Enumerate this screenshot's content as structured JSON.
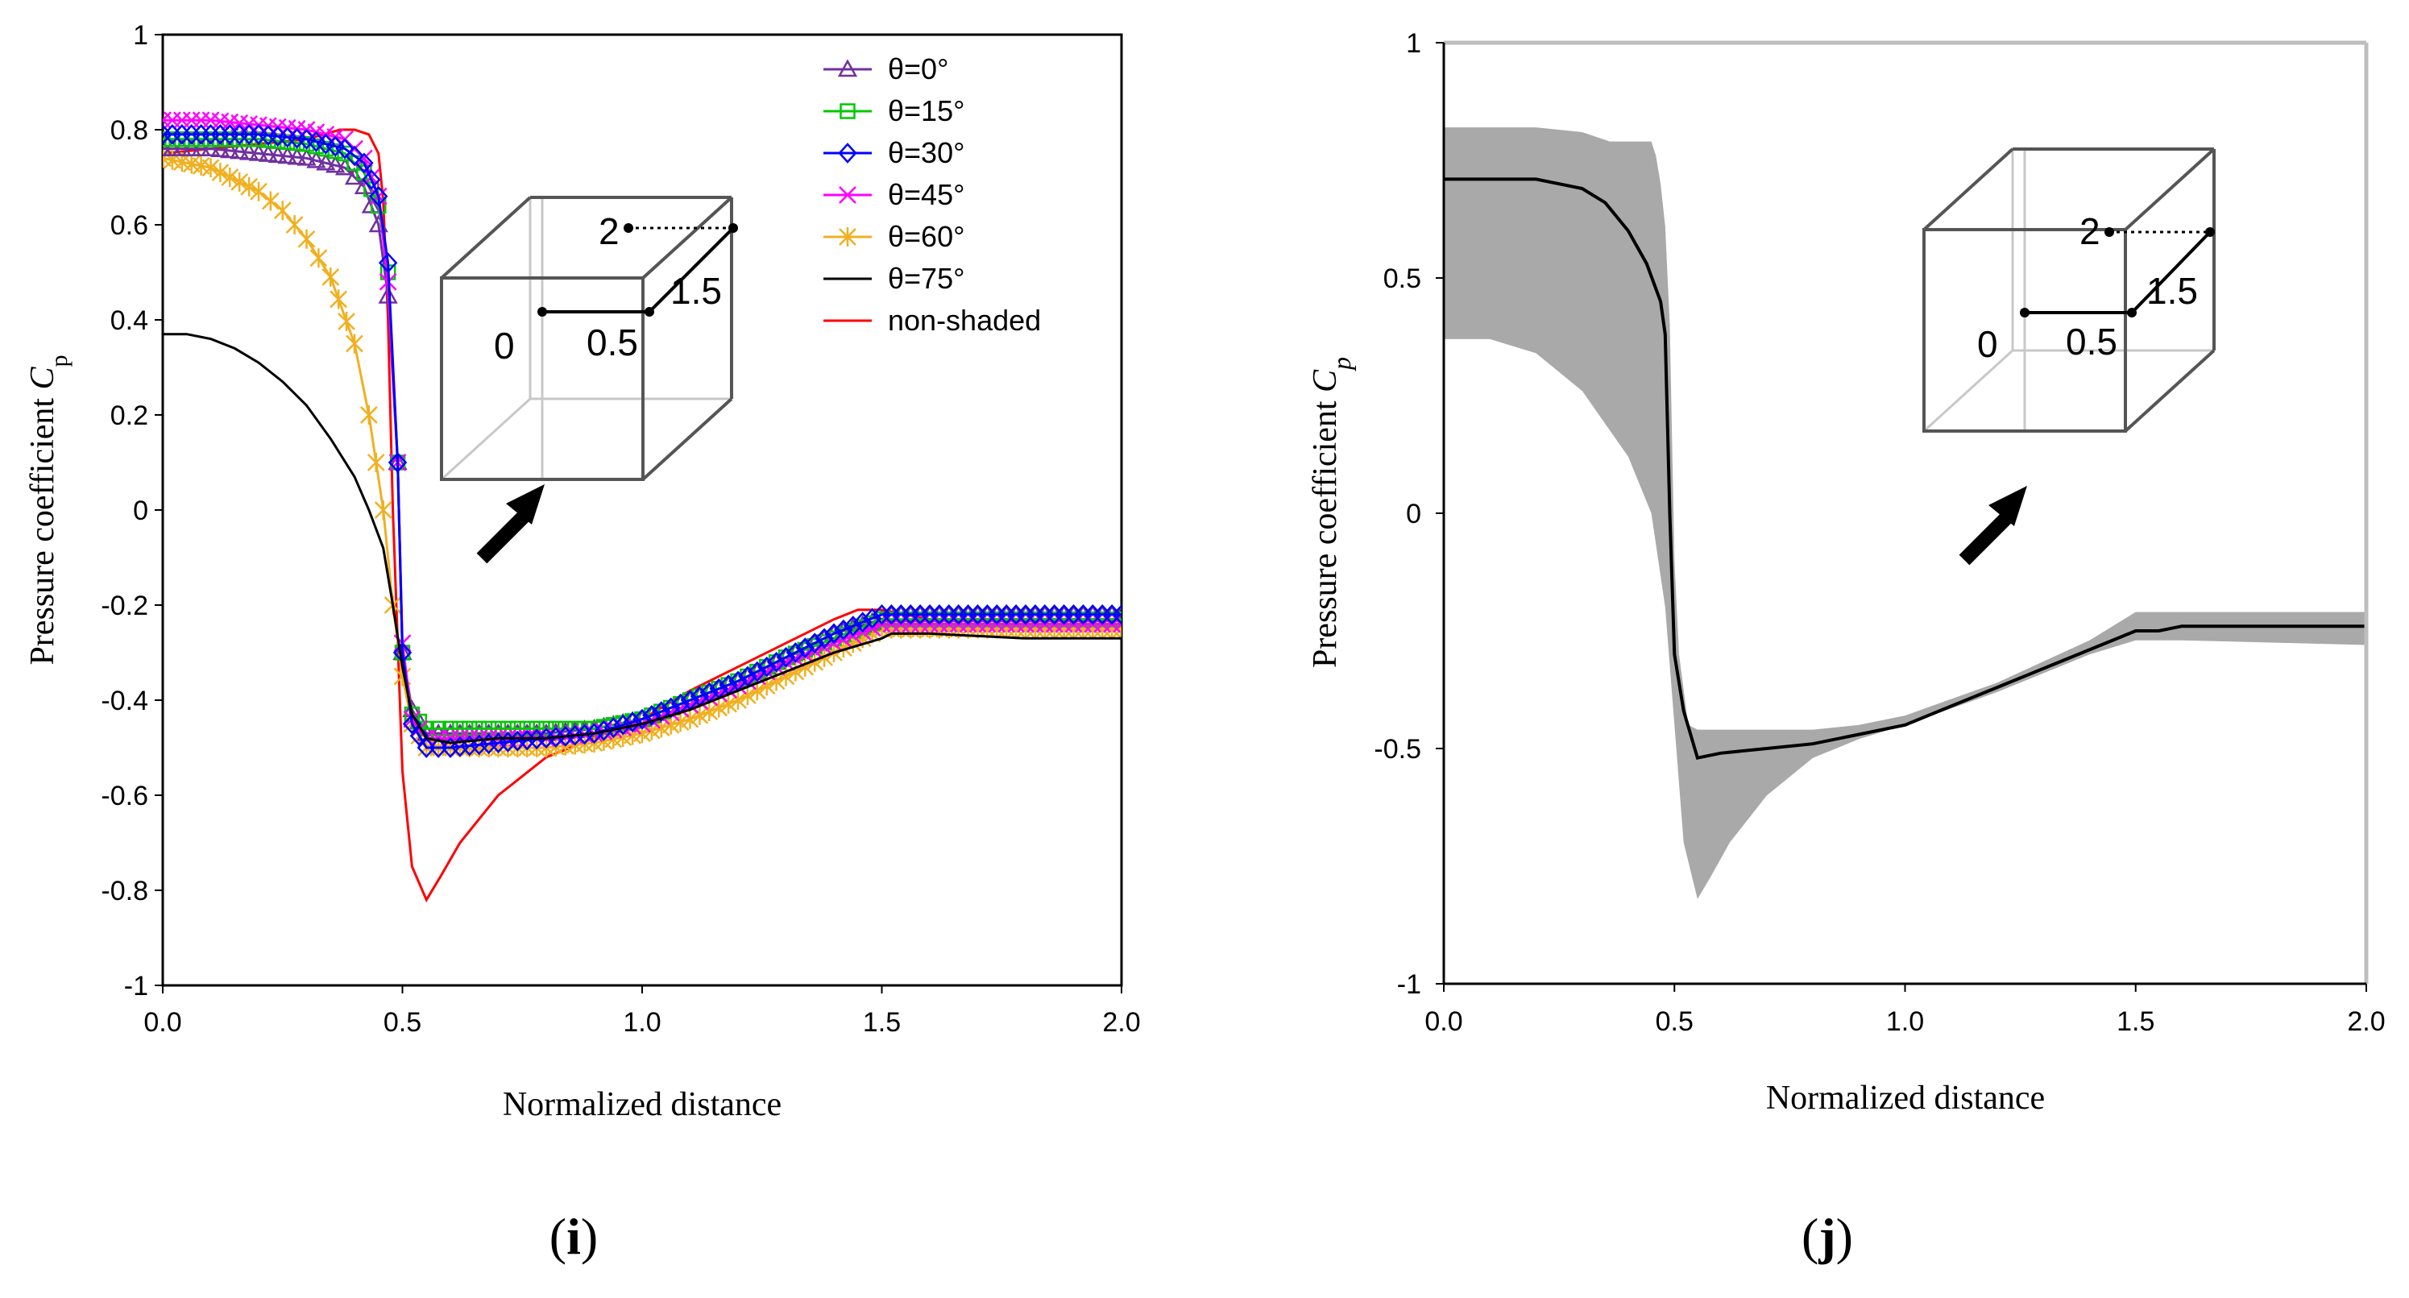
{
  "chart_data": [
    {
      "type": "line",
      "panel_label": "i",
      "xlabel": "Normalized distance",
      "ylabel_main": "Pressure coefficient ",
      "ylabel_sym": "C",
      "ylabel_sub": "p",
      "xlim": [
        0,
        2
      ],
      "ylim": [
        -1,
        1
      ],
      "x_ticks": [
        "0.0",
        "0.5",
        "1.0",
        "1.5",
        "2.0"
      ],
      "x_tick_values": [
        0,
        0.5,
        1,
        1.5,
        2
      ],
      "y_ticks": [
        "1",
        "0.8",
        "0.6",
        "0.4",
        "0.2",
        "0",
        "-0.2",
        "-0.4",
        "-0.6",
        "-0.8",
        "-1"
      ],
      "y_tick_values": [
        1,
        0.8,
        0.6,
        0.4,
        0.2,
        0,
        -0.2,
        -0.4,
        -0.6,
        -0.8,
        -1
      ],
      "legend_position": "top-right",
      "grid": false,
      "series": [
        {
          "name": "θ=0°",
          "color": "#7030A0",
          "marker": "triangle",
          "x": [
            0,
            0.1,
            0.2,
            0.3,
            0.38,
            0.42,
            0.45,
            0.47,
            0.49,
            0.5,
            0.52,
            0.55,
            0.6,
            0.7,
            0.8,
            0.9,
            1.0,
            1.1,
            1.2,
            1.3,
            1.4,
            1.5,
            1.52,
            1.6,
            1.8,
            2.0
          ],
          "y": [
            0.76,
            0.76,
            0.75,
            0.74,
            0.72,
            0.68,
            0.6,
            0.45,
            0.1,
            -0.3,
            -0.42,
            -0.47,
            -0.47,
            -0.47,
            -0.47,
            -0.46,
            -0.44,
            -0.4,
            -0.36,
            -0.31,
            -0.26,
            -0.23,
            -0.22,
            -0.22,
            -0.22,
            -0.22
          ]
        },
        {
          "name": "θ=15°",
          "color": "#00C800",
          "marker": "square",
          "x": [
            0,
            0.1,
            0.2,
            0.3,
            0.38,
            0.42,
            0.45,
            0.47,
            0.49,
            0.5,
            0.52,
            0.55,
            0.6,
            0.7,
            0.8,
            0.9,
            1.0,
            1.1,
            1.2,
            1.3,
            1.4,
            1.5,
            1.52,
            1.6,
            1.8,
            2.0
          ],
          "y": [
            0.78,
            0.78,
            0.78,
            0.77,
            0.75,
            0.71,
            0.64,
            0.5,
            0.1,
            -0.3,
            -0.43,
            -0.46,
            -0.46,
            -0.46,
            -0.46,
            -0.46,
            -0.44,
            -0.4,
            -0.36,
            -0.31,
            -0.27,
            -0.23,
            -0.23,
            -0.23,
            -0.23,
            -0.23
          ]
        },
        {
          "name": "θ=30°",
          "color": "#0000FF",
          "marker": "diamond",
          "x": [
            0,
            0.1,
            0.2,
            0.3,
            0.38,
            0.42,
            0.45,
            0.47,
            0.49,
            0.5,
            0.52,
            0.55,
            0.6,
            0.7,
            0.8,
            0.9,
            1.0,
            1.1,
            1.2,
            1.3,
            1.4,
            1.5,
            1.52,
            1.6,
            1.8,
            2.0
          ],
          "y": [
            0.79,
            0.79,
            0.79,
            0.78,
            0.76,
            0.73,
            0.66,
            0.52,
            0.1,
            -0.3,
            -0.45,
            -0.5,
            -0.5,
            -0.49,
            -0.48,
            -0.47,
            -0.44,
            -0.4,
            -0.36,
            -0.31,
            -0.26,
            -0.22,
            -0.22,
            -0.22,
            -0.22,
            -0.22
          ]
        },
        {
          "name": "θ=45°",
          "color": "#FF00FF",
          "marker": "x",
          "x": [
            0,
            0.1,
            0.2,
            0.3,
            0.38,
            0.42,
            0.45,
            0.47,
            0.49,
            0.5,
            0.52,
            0.55,
            0.6,
            0.7,
            0.8,
            0.9,
            1.0,
            1.1,
            1.2,
            1.3,
            1.4,
            1.5,
            1.52,
            1.6,
            1.8,
            2.0
          ],
          "y": [
            0.82,
            0.82,
            0.81,
            0.8,
            0.78,
            0.74,
            0.66,
            0.48,
            0.1,
            -0.28,
            -0.44,
            -0.48,
            -0.48,
            -0.48,
            -0.48,
            -0.47,
            -0.45,
            -0.41,
            -0.37,
            -0.32,
            -0.28,
            -0.24,
            -0.24,
            -0.24,
            -0.24,
            -0.24
          ]
        },
        {
          "name": "θ=60°",
          "color": "#F0B020",
          "marker": "asterisk",
          "x": [
            0,
            0.1,
            0.2,
            0.25,
            0.3,
            0.35,
            0.4,
            0.43,
            0.46,
            0.48,
            0.5,
            0.52,
            0.55,
            0.6,
            0.7,
            0.8,
            0.9,
            1.0,
            1.1,
            1.2,
            1.3,
            1.4,
            1.5,
            1.52,
            1.6,
            1.8,
            2.0
          ],
          "y": [
            0.74,
            0.72,
            0.67,
            0.63,
            0.57,
            0.49,
            0.35,
            0.2,
            0.0,
            -0.2,
            -0.35,
            -0.45,
            -0.5,
            -0.5,
            -0.5,
            -0.5,
            -0.49,
            -0.47,
            -0.44,
            -0.4,
            -0.35,
            -0.3,
            -0.25,
            -0.25,
            -0.25,
            -0.25,
            -0.25
          ]
        },
        {
          "name": "θ=75°",
          "color": "#000000",
          "marker": "none",
          "x": [
            0,
            0.05,
            0.1,
            0.15,
            0.2,
            0.25,
            0.3,
            0.35,
            0.4,
            0.43,
            0.46,
            0.48,
            0.5,
            0.52,
            0.55,
            0.6,
            0.7,
            0.8,
            0.9,
            1.0,
            1.1,
            1.2,
            1.3,
            1.4,
            1.5,
            1.52,
            1.6,
            1.8,
            2.0
          ],
          "y": [
            0.37,
            0.37,
            0.36,
            0.34,
            0.31,
            0.27,
            0.22,
            0.15,
            0.07,
            0.0,
            -0.08,
            -0.2,
            -0.33,
            -0.43,
            -0.48,
            -0.49,
            -0.48,
            -0.48,
            -0.47,
            -0.45,
            -0.42,
            -0.38,
            -0.34,
            -0.3,
            -0.27,
            -0.26,
            -0.26,
            -0.27,
            -0.27
          ]
        },
        {
          "name": "non-shaded",
          "color": "#FF0000",
          "marker": "none",
          "x": [
            0,
            0.1,
            0.2,
            0.3,
            0.37,
            0.4,
            0.43,
            0.45,
            0.46,
            0.47,
            0.48,
            0.5,
            0.52,
            0.55,
            0.58,
            0.62,
            0.7,
            0.8,
            0.9,
            1.0,
            1.1,
            1.2,
            1.3,
            1.4,
            1.45,
            1.5,
            1.55,
            1.6,
            1.8,
            2.0
          ],
          "y": [
            0.75,
            0.76,
            0.77,
            0.78,
            0.8,
            0.8,
            0.79,
            0.75,
            0.65,
            0.4,
            0.0,
            -0.55,
            -0.75,
            -0.82,
            -0.77,
            -0.7,
            -0.6,
            -0.52,
            -0.48,
            -0.44,
            -0.38,
            -0.33,
            -0.28,
            -0.23,
            -0.21,
            -0.21,
            -0.22,
            -0.23,
            -0.23,
            -0.23
          ]
        }
      ]
    },
    {
      "type": "area",
      "panel_label": "j",
      "xlabel": "Normalized distance",
      "ylabel_main": "Pressure coefficient ",
      "ylabel_sym": "C",
      "ylabel_sub": "p",
      "xlim": [
        0,
        2
      ],
      "ylim": [
        -1,
        1
      ],
      "x_ticks": [
        "0.0",
        "0.5",
        "1.0",
        "1.5",
        "2.0"
      ],
      "x_tick_values": [
        0,
        0.5,
        1,
        1.5,
        2
      ],
      "y_ticks": [
        "1",
        "0.5",
        "0",
        "-0.5",
        "-1"
      ],
      "y_tick_values": [
        1,
        0.5,
        0,
        -0.5,
        -1
      ],
      "grid": false,
      "band_color": "#A9A9A9",
      "band_upper": {
        "x": [
          0,
          0.2,
          0.3,
          0.36,
          0.4,
          0.43,
          0.45,
          0.46,
          0.47,
          0.48,
          0.49,
          0.5,
          0.51,
          0.53,
          0.55,
          0.6,
          0.7,
          0.8,
          0.9,
          1.0,
          1.2,
          1.4,
          1.5,
          1.52,
          1.6,
          2.0
        ],
        "y": [
          0.82,
          0.82,
          0.81,
          0.79,
          0.79,
          0.79,
          0.79,
          0.76,
          0.7,
          0.61,
          0.4,
          -0.1,
          -0.3,
          -0.45,
          -0.46,
          -0.46,
          -0.46,
          -0.46,
          -0.45,
          -0.43,
          -0.36,
          -0.27,
          -0.21,
          -0.21,
          -0.21,
          -0.21
        ]
      },
      "band_lower": {
        "x": [
          0,
          0.1,
          0.2,
          0.3,
          0.4,
          0.45,
          0.48,
          0.5,
          0.52,
          0.55,
          0.58,
          0.62,
          0.7,
          0.8,
          0.9,
          1.0,
          1.2,
          1.4,
          1.5,
          1.52,
          1.6,
          2.0
        ],
        "y": [
          0.37,
          0.37,
          0.34,
          0.26,
          0.12,
          0.0,
          -0.2,
          -0.45,
          -0.7,
          -0.82,
          -0.77,
          -0.7,
          -0.6,
          -0.52,
          -0.48,
          -0.45,
          -0.38,
          -0.3,
          -0.27,
          -0.27,
          -0.27,
          -0.28
        ]
      },
      "mean_series": {
        "color": "#000000",
        "x": [
          0,
          0.1,
          0.2,
          0.25,
          0.3,
          0.35,
          0.4,
          0.44,
          0.47,
          0.48,
          0.49,
          0.5,
          0.52,
          0.55,
          0.6,
          0.7,
          0.8,
          0.9,
          1.0,
          1.1,
          1.2,
          1.3,
          1.4,
          1.5,
          1.55,
          1.6,
          1.8,
          2.0
        ],
        "y": [
          0.71,
          0.71,
          0.71,
          0.7,
          0.69,
          0.66,
          0.6,
          0.53,
          0.45,
          0.38,
          0.0,
          -0.3,
          -0.42,
          -0.52,
          -0.51,
          -0.5,
          -0.49,
          -0.47,
          -0.45,
          -0.41,
          -0.37,
          -0.33,
          -0.29,
          -0.25,
          -0.25,
          -0.24,
          -0.24,
          -0.24
        ]
      }
    }
  ],
  "inset": {
    "labels": [
      "2",
      "1.5",
      "0",
      "0.5"
    ]
  }
}
